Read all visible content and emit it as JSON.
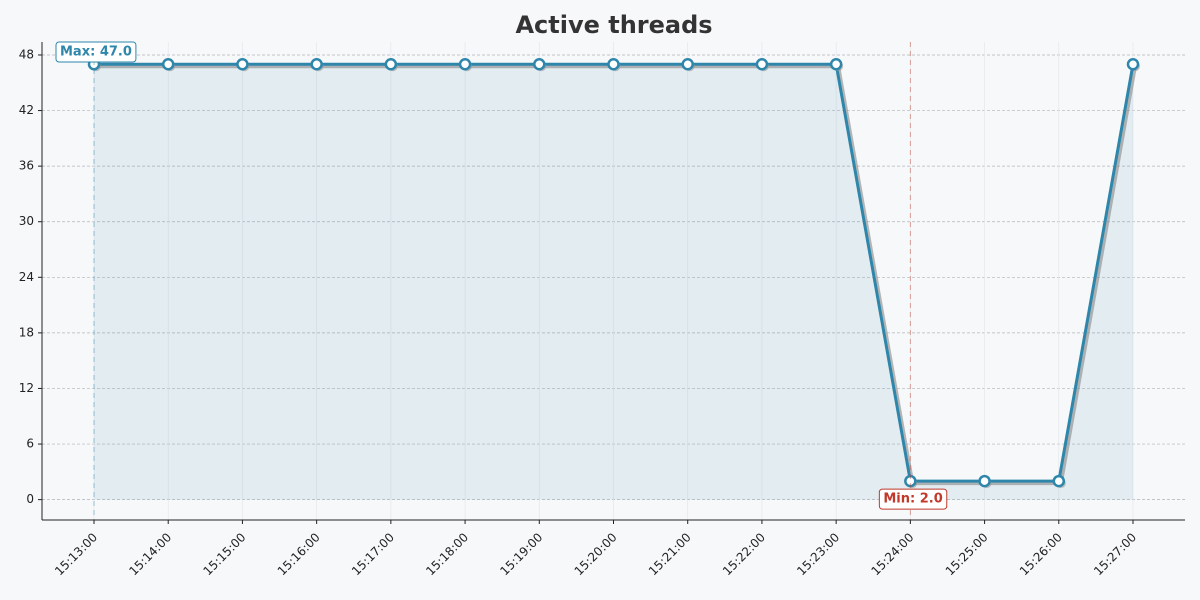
{
  "chart_data": {
    "type": "line",
    "title": "Active threads",
    "categories": [
      "15:13:00",
      "15:14:00",
      "15:15:00",
      "15:16:00",
      "15:17:00",
      "15:18:00",
      "15:19:00",
      "15:20:00",
      "15:21:00",
      "15:22:00",
      "15:23:00",
      "15:24:00",
      "15:25:00",
      "15:26:00",
      "15:27:00"
    ],
    "series": [
      {
        "name": "Active threads",
        "color": "#2e86ab",
        "values": [
          47,
          47,
          47,
          47,
          47,
          47,
          47,
          47,
          47,
          47,
          47,
          2,
          2,
          2,
          47
        ]
      }
    ],
    "ylim": [
      -2.2,
      49.4
    ],
    "yticks": [
      0,
      6,
      12,
      18,
      24,
      30,
      36,
      42,
      48
    ],
    "grid": true,
    "annotations": {
      "max": "Max: 47.0",
      "min": "Min: 2.0"
    }
  }
}
